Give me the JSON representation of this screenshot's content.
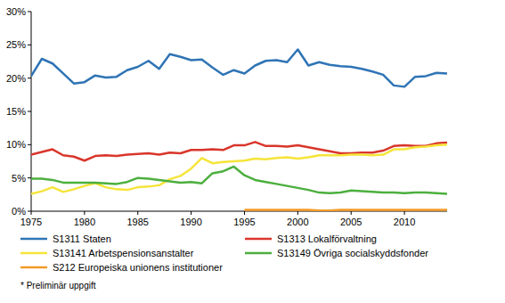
{
  "chart_data": {
    "type": "line",
    "x": [
      1975,
      1976,
      1977,
      1978,
      1979,
      1980,
      1981,
      1982,
      1983,
      1984,
      1985,
      1986,
      1987,
      1988,
      1989,
      1990,
      1991,
      1992,
      1993,
      1994,
      1995,
      1996,
      1997,
      1998,
      1999,
      2000,
      2001,
      2002,
      2003,
      2004,
      2005,
      2006,
      2007,
      2008,
      2009,
      2010,
      2011,
      2012,
      2013,
      2014
    ],
    "xlim": [
      1975,
      2014
    ],
    "xticks": [
      1975,
      1980,
      1985,
      1990,
      1995,
      2000,
      2005,
      2010
    ],
    "ylim": [
      0,
      30
    ],
    "yticks": [
      {
        "value": 0,
        "label": "0%"
      },
      {
        "value": 5,
        "label": "5%"
      },
      {
        "value": 10,
        "label": "10%"
      },
      {
        "value": 15,
        "label": "15%"
      },
      {
        "value": 20,
        "label": "20%"
      },
      {
        "value": 25,
        "label": "25%"
      },
      {
        "value": 30,
        "label": "30%"
      }
    ],
    "grid": false,
    "legend": "bottom",
    "annotations": [
      "* Preliminär uppgift"
    ],
    "series": [
      {
        "name": "S1311 Staten",
        "color": "#2f74b5",
        "values": [
          20.3,
          22.9,
          22.2,
          20.7,
          19.2,
          19.4,
          20.4,
          20.1,
          20.2,
          21.2,
          21.7,
          22.6,
          21.4,
          23.6,
          23.2,
          22.7,
          22.8,
          21.6,
          20.5,
          21.2,
          20.7,
          21.9,
          22.6,
          22.7,
          22.4,
          24.3,
          21.9,
          22.4,
          22.0,
          21.8,
          21.7,
          21.4,
          21.0,
          20.5,
          18.9,
          18.7,
          20.2,
          20.3,
          20.8,
          20.7
        ]
      },
      {
        "name": "S1313 Lokalförvaltning",
        "color": "#d9362b",
        "values": [
          8.5,
          8.9,
          9.3,
          8.4,
          8.2,
          7.6,
          8.3,
          8.4,
          8.3,
          8.5,
          8.6,
          8.7,
          8.5,
          8.8,
          8.7,
          9.2,
          9.2,
          9.3,
          9.2,
          9.9,
          9.9,
          10.4,
          9.8,
          9.8,
          9.7,
          9.9,
          9.6,
          9.3,
          9.0,
          8.7,
          8.7,
          8.8,
          8.8,
          9.1,
          9.8,
          9.9,
          9.8,
          9.8,
          10.2,
          10.3
        ]
      },
      {
        "name": "S13141 Arbetspensionsanstalter",
        "color": "#f5e43a",
        "values": [
          2.6,
          3.0,
          3.6,
          2.9,
          3.3,
          3.8,
          4.2,
          3.6,
          3.3,
          3.2,
          3.6,
          3.7,
          3.9,
          4.8,
          5.3,
          6.4,
          8.0,
          7.2,
          7.4,
          7.5,
          7.6,
          7.9,
          7.8,
          8.0,
          8.1,
          7.9,
          8.1,
          8.4,
          8.4,
          8.4,
          8.5,
          8.5,
          8.4,
          8.5,
          9.3,
          9.3,
          9.6,
          9.7,
          9.9,
          10.0
        ]
      },
      {
        "name": "S13149 Övriga socialskyddsfonder",
        "color": "#4caf3e",
        "values": [
          4.9,
          4.9,
          4.7,
          4.3,
          4.3,
          4.3,
          4.3,
          4.2,
          4.1,
          4.4,
          5.0,
          4.9,
          4.7,
          4.5,
          4.3,
          4.4,
          4.2,
          5.7,
          6.0,
          6.7,
          5.4,
          4.7,
          4.4,
          4.1,
          3.8,
          3.5,
          3.2,
          2.8,
          2.7,
          2.8,
          3.1,
          3.0,
          2.9,
          2.8,
          2.8,
          2.7,
          2.8,
          2.8,
          2.7,
          2.6
        ]
      },
      {
        "name": "S212 Europeiska unionens institutioner",
        "color": "#f39a26",
        "values": [
          null,
          null,
          null,
          null,
          null,
          null,
          null,
          null,
          null,
          null,
          null,
          null,
          null,
          null,
          null,
          null,
          null,
          null,
          null,
          null,
          0.2,
          0.2,
          0.2,
          0.2,
          0.2,
          0.2,
          0.2,
          0.1,
          0.1,
          0.2,
          0.2,
          0.2,
          0.2,
          0.2,
          0.2,
          0.2,
          0.2,
          0.2,
          0.2,
          0.2
        ]
      }
    ]
  }
}
